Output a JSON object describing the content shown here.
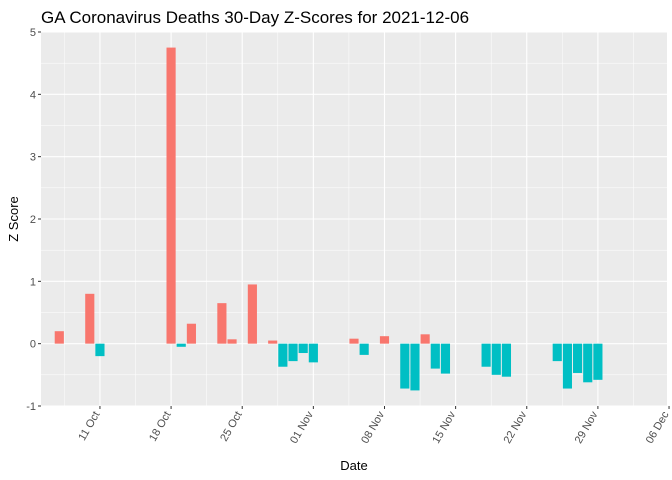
{
  "chart_data": {
    "type": "bar",
    "title": "GA Coronavirus Deaths 30-Day Z-Scores for 2021-12-06",
    "xlabel": "Date",
    "ylabel": "Z Score",
    "ylim": [
      -1,
      5
    ],
    "yticks": [
      -1,
      0,
      1,
      2,
      3,
      4,
      5
    ],
    "xdomain_days": [
      -5.8,
      55.8
    ],
    "xticks": [
      {
        "label": "11 Oct",
        "day": 0
      },
      {
        "label": "18 Oct",
        "day": 7
      },
      {
        "label": "25 Oct",
        "day": 14
      },
      {
        "label": "01 Nov",
        "day": 21
      },
      {
        "label": "08 Nov",
        "day": 28
      },
      {
        "label": "15 Nov",
        "day": 35
      },
      {
        "label": "22 Nov",
        "day": 42
      },
      {
        "label": "29 Nov",
        "day": 49
      },
      {
        "label": "06 Dec",
        "day": 56
      }
    ],
    "colors": {
      "positive": "#F8766D",
      "negative": "#00BFC4"
    },
    "days": [
      -4,
      -3,
      -2,
      -1,
      0,
      1,
      2,
      3,
      4,
      5,
      6,
      7,
      8,
      9,
      10,
      11,
      12,
      13,
      14,
      15,
      16,
      17,
      18,
      19,
      20,
      21,
      22,
      23,
      24,
      25,
      26,
      27,
      28,
      29,
      30,
      31,
      32,
      33,
      34,
      35,
      36,
      37,
      38,
      39,
      40,
      41,
      42,
      43,
      44,
      45,
      46,
      47,
      48,
      49,
      50,
      51,
      52,
      53
    ],
    "values": [
      0.2,
      0,
      0,
      0.8,
      -0.2,
      0,
      0,
      0,
      0,
      0,
      0,
      4.75,
      -0.05,
      0.32,
      0,
      0,
      0.65,
      0.07,
      0,
      0.95,
      0,
      0.05,
      -0.37,
      -0.28,
      -0.15,
      -0.3,
      0,
      0,
      0,
      0.08,
      -0.18,
      0,
      0.12,
      0,
      -0.72,
      -0.75,
      0.15,
      -0.4,
      -0.48,
      0,
      0,
      0,
      -0.37,
      -0.5,
      -0.53,
      0,
      0,
      0,
      0,
      -0.28,
      -0.72,
      -0.47,
      -0.62,
      -0.58,
      0,
      0,
      0,
      0
    ]
  }
}
